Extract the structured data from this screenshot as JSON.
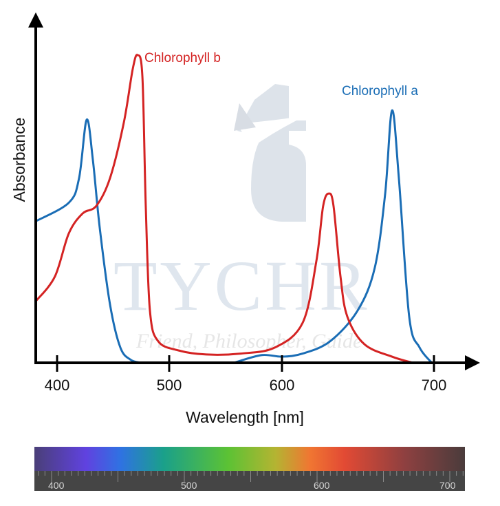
{
  "chart_data": {
    "type": "line",
    "title": "",
    "xlabel": "Wavelength [nm]",
    "ylabel": "Absorbance",
    "xlim": [
      381,
      710
    ],
    "ylim": [
      0,
      1
    ],
    "x_ticks": [
      400,
      500,
      600,
      700
    ],
    "x_tick_labels": [
      "400",
      "500",
      "600",
      "700"
    ],
    "grid": false,
    "series": [
      {
        "name": "Chlorophyll a",
        "color": "#1a6db5",
        "segments": [
          [
            [
              381,
              0.46
            ],
            [
              410.4,
              0.52
            ],
            [
              419.6,
              0.6
            ],
            [
              426.4,
              0.79
            ],
            [
              431.9,
              0.66
            ],
            [
              438,
              0.44
            ],
            [
              447.2,
              0.19
            ],
            [
              456.4,
              0.05
            ],
            [
              465.6,
              0.01
            ],
            [
              474.8,
              0
            ]
          ],
          [
            [
              557.3,
              0
            ],
            [
              581.7,
              0.025
            ],
            [
              600,
              0.02
            ],
            [
              613.6,
              0.03
            ],
            [
              631.7,
              0.07
            ],
            [
              649.8,
              0.17
            ],
            [
              661.1,
              0.31
            ],
            [
              667.9,
              0.55
            ],
            [
              672.4,
              0.82
            ],
            [
              676.9,
              0.6
            ],
            [
              683.7,
              0.15
            ],
            [
              690.5,
              0.05
            ],
            [
              698.6,
              0
            ]
          ]
        ]
      },
      {
        "name": "Chlorophyll b",
        "color": "#d42323",
        "segments": [
          [
            [
              381,
              0.2
            ],
            [
              398,
              0.28
            ],
            [
              410.4,
              0.42
            ],
            [
              422.7,
              0.485
            ],
            [
              435,
              0.51
            ],
            [
              447.2,
              0.6
            ],
            [
              459.5,
              0.78
            ],
            [
              467.5,
              0.955
            ],
            [
              471.8,
              1.0
            ],
            [
              476.1,
              0.93
            ],
            [
              479.1,
              0.51
            ],
            [
              482.8,
              0.17
            ],
            [
              490.2,
              0.07
            ],
            [
              508.5,
              0.04
            ],
            [
              532.9,
              0.027
            ],
            [
              563.4,
              0.03
            ],
            [
              593.9,
              0.05
            ],
            [
              613.6,
              0.13
            ],
            [
              622.6,
              0.33
            ],
            [
              627.1,
              0.51
            ],
            [
              630.8,
              0.55
            ],
            [
              633.9,
              0.51
            ],
            [
              638.5,
              0.28
            ],
            [
              643,
              0.15
            ],
            [
              654.3,
              0.06
            ],
            [
              672.4,
              0.02
            ],
            [
              686,
              0
            ]
          ]
        ]
      }
    ],
    "annotations": [
      "Chlorophyll b",
      "Chlorophyll a"
    ]
  },
  "watermark": {
    "name": "TYCHR",
    "tagline": "Friend, Philosopher, Guide"
  },
  "spectrum_bar": {
    "tick_labels": [
      "400",
      "500",
      "600",
      "700"
    ]
  }
}
